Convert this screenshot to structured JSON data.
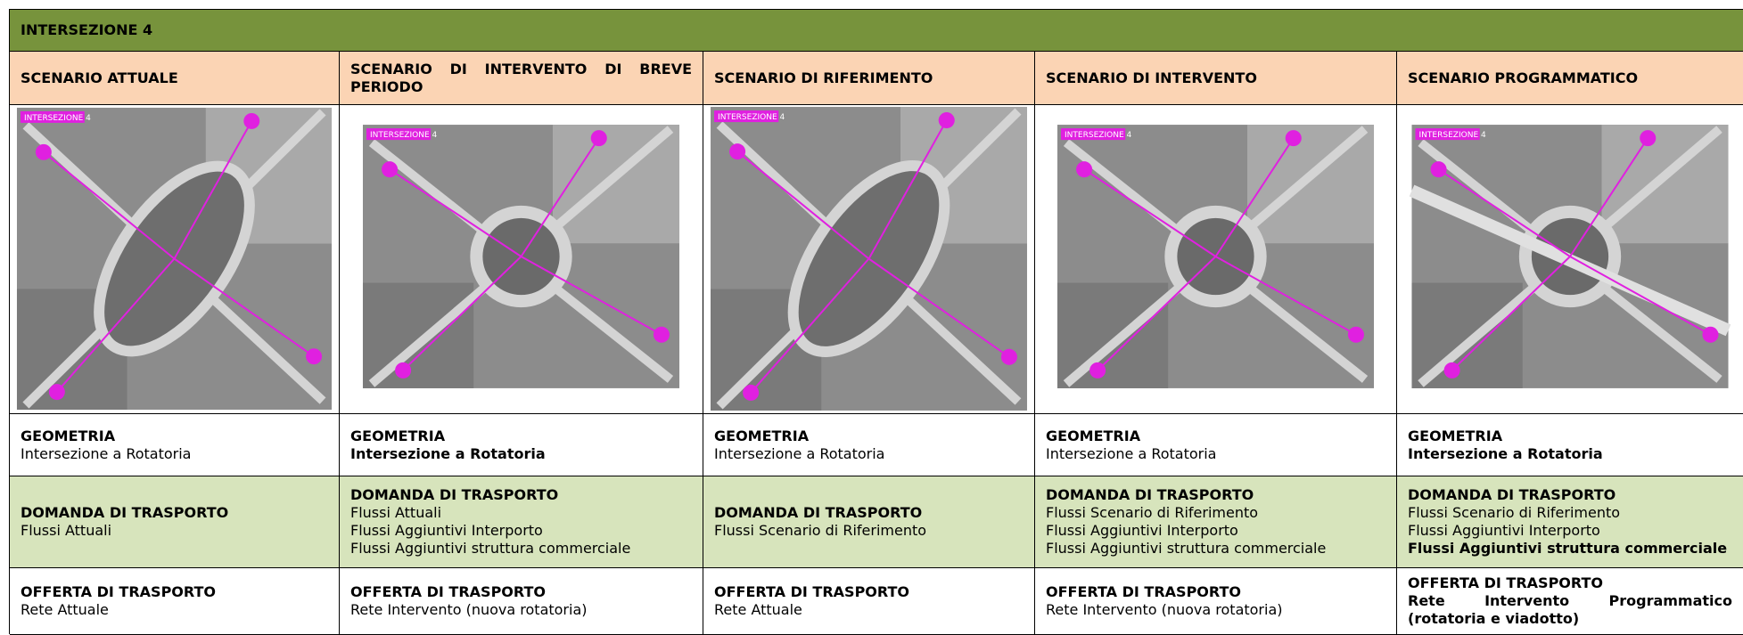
{
  "title": "INTERSEZIONE 4",
  "columns": [
    {
      "header": "SCENARIO ATTUALE",
      "image_label": "INTERSEZIONE 4",
      "geometria": {
        "heading": "GEOMETRIA",
        "lines": [
          "Intersezione a Rotatoria"
        ]
      },
      "domanda": {
        "heading": "DOMANDA DI TRASPORTO",
        "lines": [
          "Flussi Attuali"
        ]
      },
      "offerta": {
        "heading": "OFFERTA DI TRASPORTO",
        "lines": [
          "Rete Attuale"
        ]
      }
    },
    {
      "header": "SCENARIO DI INTERVENTO DI BREVE PERIODO",
      "image_label": "INTERSEZIONE 4",
      "geometria": {
        "heading": "GEOMETRIA",
        "lines": [
          "Intersezione a Rotatoria"
        ]
      },
      "domanda": {
        "heading": "DOMANDA DI TRASPORTO",
        "lines": [
          "Flussi Attuali",
          "Flussi Aggiuntivi Interporto",
          "Flussi Aggiuntivi struttura commerciale"
        ]
      },
      "offerta": {
        "heading": "OFFERTA DI TRASPORTO",
        "lines": [
          "Rete Intervento (nuova rotatoria)"
        ]
      }
    },
    {
      "header": "SCENARIO DI RIFERIMENTO",
      "image_label": "INTERSEZIONE 4",
      "geometria": {
        "heading": "GEOMETRIA",
        "lines": [
          "Intersezione a Rotatoria"
        ]
      },
      "domanda": {
        "heading": "DOMANDA DI TRASPORTO",
        "lines": [
          "Flussi Scenario di Riferimento"
        ]
      },
      "offerta": {
        "heading": "OFFERTA DI TRASPORTO",
        "lines": [
          "Rete Attuale"
        ]
      }
    },
    {
      "header": "SCENARIO DI INTERVENTO",
      "image_label": "INTERSEZIONE 4",
      "geometria": {
        "heading": "GEOMETRIA",
        "lines": [
          "Intersezione a Rotatoria"
        ]
      },
      "domanda": {
        "heading": "DOMANDA DI TRASPORTO",
        "lines": [
          "Flussi Scenario di Riferimento",
          "Flussi Aggiuntivi Interporto",
          "Flussi Aggiuntivi struttura commerciale"
        ]
      },
      "offerta": {
        "heading": "OFFERTA DI TRASPORTO",
        "lines": [
          "Rete Intervento (nuova rotatoria)"
        ]
      }
    },
    {
      "header": "SCENARIO PROGRAMMATICO",
      "image_label": "INTERSEZIONE 4",
      "geometria": {
        "heading": "GEOMETRIA",
        "lines": [
          "Intersezione a Rotatoria"
        ]
      },
      "domanda": {
        "heading": "DOMANDA DI TRASPORTO",
        "lines": [
          "Flussi Scenario di Riferimento",
          "Flussi Aggiuntivi Interporto",
          "Flussi Aggiuntivi struttura commerciale"
        ]
      },
      "offerta": {
        "heading": "OFFERTA DI TRASPORTO",
        "lines": [
          "Rete Intervento Programmatico (rotatoria e viadotto)"
        ]
      }
    }
  ]
}
